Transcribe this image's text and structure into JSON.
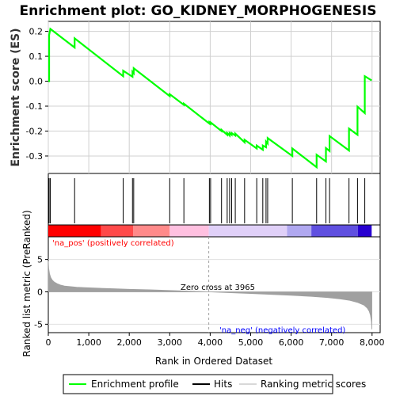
{
  "chart_data": {
    "type": "line",
    "title": "Enrichment plot: GO_KIDNEY_MORPHOGENESIS",
    "xlabel": "Rank in Ordered Dataset",
    "ylabel_top": "Enrichment score (ES)",
    "ylabel_bottom": "Ranked list metric (PreRanked)",
    "xlim": [
      0,
      8200
    ],
    "es_ylim": [
      -0.37,
      0.24
    ],
    "metric_ylim": [
      -6.3,
      8.5
    ],
    "x_ticks": [
      "0",
      "1,000",
      "2,000",
      "3,000",
      "4,000",
      "5,000",
      "6,000",
      "7,000",
      "8,000"
    ],
    "x_tick_values": [
      0,
      1000,
      2000,
      3000,
      4000,
      5000,
      6000,
      7000,
      8000
    ],
    "es_ticks": [
      "0.2",
      "0.1",
      "0.0",
      "-0.1",
      "-0.2",
      "-0.3"
    ],
    "es_tick_values": [
      0.2,
      0.1,
      0.0,
      -0.1,
      -0.2,
      -0.3
    ],
    "metric_ticks": [
      "5",
      "0",
      "-5"
    ],
    "metric_tick_values": [
      5,
      0,
      -5
    ],
    "hits": [
      20,
      50,
      650,
      1850,
      2080,
      2110,
      3000,
      3350,
      3980,
      4010,
      4280,
      4420,
      4480,
      4530,
      4620,
      4850,
      5150,
      5300,
      5380,
      5420,
      6030,
      6630,
      6860,
      6950,
      7430,
      7640,
      7820
    ],
    "enrichment_profile": {
      "x": [
        0,
        20,
        20,
        50,
        650,
        650,
        1850,
        1850,
        2080,
        2080,
        2110,
        2110,
        3000,
        3000,
        3350,
        3350,
        3980,
        3980,
        4010,
        4010,
        4280,
        4280,
        4420,
        4420,
        4480,
        4480,
        4530,
        4530,
        4620,
        4620,
        4850,
        4850,
        5150,
        5150,
        5300,
        5300,
        5380,
        5380,
        5420,
        5420,
        6030,
        6030,
        6630,
        6630,
        6860,
        6860,
        6950,
        6950,
        7430,
        7430,
        7640,
        7640,
        7820,
        7820,
        7990
      ],
      "y": [
        0.0,
        0.0,
        0.185,
        0.21,
        0.135,
        0.172,
        0.02,
        0.042,
        0.018,
        0.038,
        0.032,
        0.052,
        -0.06,
        -0.052,
        -0.095,
        -0.09,
        -0.17,
        -0.165,
        -0.17,
        -0.165,
        -0.2,
        -0.195,
        -0.215,
        -0.208,
        -0.218,
        -0.208,
        -0.215,
        -0.208,
        -0.218,
        -0.21,
        -0.245,
        -0.235,
        -0.27,
        -0.258,
        -0.275,
        -0.258,
        -0.265,
        -0.242,
        -0.25,
        -0.228,
        -0.3,
        -0.27,
        -0.345,
        -0.295,
        -0.322,
        -0.268,
        -0.28,
        -0.22,
        -0.278,
        -0.19,
        -0.215,
        -0.102,
        -0.128,
        0.02,
        0.003
      ]
    },
    "metric_curve": {
      "x": [
        0,
        10,
        30,
        60,
        100,
        150,
        220,
        300,
        400,
        550,
        700,
        900,
        1200,
        1600,
        2000,
        2500,
        3000,
        3500,
        3965,
        4500,
        5000,
        5500,
        6000,
        6500,
        6900,
        7200,
        7450,
        7650,
        7800,
        7880,
        7930,
        7960,
        7985,
        7995
      ],
      "y": [
        4.8,
        3.6,
        2.8,
        2.2,
        1.8,
        1.5,
        1.25,
        1.05,
        0.9,
        0.8,
        0.72,
        0.65,
        0.57,
        0.48,
        0.4,
        0.31,
        0.21,
        0.11,
        0.0,
        -0.13,
        -0.26,
        -0.39,
        -0.53,
        -0.7,
        -0.88,
        -1.08,
        -1.32,
        -1.65,
        -2.05,
        -2.5,
        -3.0,
        -3.6,
        -4.6,
        -5.8
      ]
    },
    "zero_cross_label": "Zero cross at 3965",
    "zero_cross": 3965,
    "pos_label": "'na_pos' (positively correlated)",
    "neg_label": "'na_neg' (negatively correlated)",
    "heatmap_colors": [
      "#ff0000",
      "#ff4a4a",
      "#ff8a8a",
      "#ffc0e0",
      "#e0d0f8",
      "#b0a8f0",
      "#6050e0",
      "#2800d0"
    ],
    "heatmap_bounds": [
      0,
      1300,
      2100,
      3000,
      3965,
      5900,
      6500,
      7650,
      7990
    ],
    "legend": [
      "Enrichment profile",
      "Hits",
      "Ranking metric scores"
    ],
    "colors": {
      "profile": "#00ff00",
      "hits": "#000000",
      "metric": "#a0a0a0",
      "pos_text": "#ff0000",
      "neg_text": "#0000ff",
      "zero_line": "#a0a0a0"
    }
  }
}
